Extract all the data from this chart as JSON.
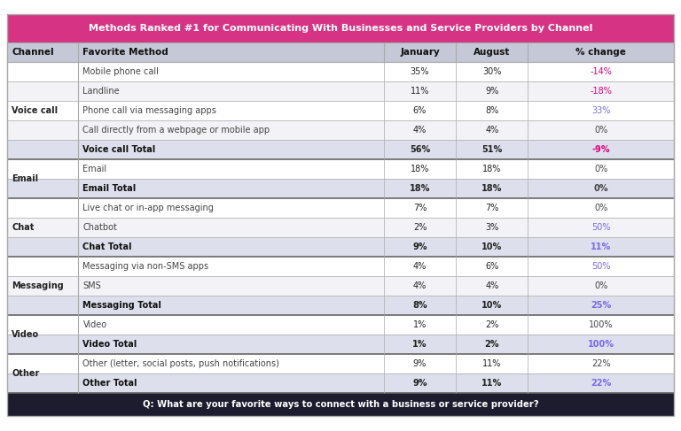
{
  "title": "Methods Ranked #1 for Communicating With Businesses and Service Providers by Channel",
  "footer": "Q: What are your favorite ways to connect with a business or service provider?",
  "col_headers": [
    "Channel",
    "Favorite Method",
    "January",
    "August",
    "% change"
  ],
  "rows": [
    {
      "channel": "Voice call",
      "method": "Mobile phone call",
      "jan": "35%",
      "aug": "30%",
      "pct": "-14%",
      "is_total": false,
      "pct_color": "#e0007a",
      "row_bg": "#ffffff"
    },
    {
      "channel": "",
      "method": "Landline",
      "jan": "11%",
      "aug": "9%",
      "pct": "-18%",
      "is_total": false,
      "pct_color": "#e0007a",
      "row_bg": "#f2f2f7"
    },
    {
      "channel": "",
      "method": "Phone call via messaging apps",
      "jan": "6%",
      "aug": "8%",
      "pct": "33%",
      "is_total": false,
      "pct_color": "#7b68ee",
      "row_bg": "#ffffff"
    },
    {
      "channel": "",
      "method": "Call directly from a webpage or mobile app",
      "jan": "4%",
      "aug": "4%",
      "pct": "0%",
      "is_total": false,
      "pct_color": "#444444",
      "row_bg": "#f2f2f7"
    },
    {
      "channel": "",
      "method": "Voice call Total",
      "jan": "56%",
      "aug": "51%",
      "pct": "-9%",
      "is_total": true,
      "pct_color": "#e0007a",
      "row_bg": "#dde0ec"
    },
    {
      "channel": "Email",
      "method": "Email",
      "jan": "18%",
      "aug": "18%",
      "pct": "0%",
      "is_total": false,
      "pct_color": "#444444",
      "row_bg": "#ffffff"
    },
    {
      "channel": "",
      "method": "Email Total",
      "jan": "18%",
      "aug": "18%",
      "pct": "0%",
      "is_total": true,
      "pct_color": "#444444",
      "row_bg": "#dde0ec"
    },
    {
      "channel": "Chat",
      "method": "Live chat or in-app messaging",
      "jan": "7%",
      "aug": "7%",
      "pct": "0%",
      "is_total": false,
      "pct_color": "#444444",
      "row_bg": "#ffffff"
    },
    {
      "channel": "",
      "method": "Chatbot",
      "jan": "2%",
      "aug": "3%",
      "pct": "50%",
      "is_total": false,
      "pct_color": "#7b68ee",
      "row_bg": "#f2f2f7"
    },
    {
      "channel": "",
      "method": "Chat Total",
      "jan": "9%",
      "aug": "10%",
      "pct": "11%",
      "is_total": true,
      "pct_color": "#7b68ee",
      "row_bg": "#dde0ec"
    },
    {
      "channel": "Messaging",
      "method": "Messaging via non-SMS apps",
      "jan": "4%",
      "aug": "6%",
      "pct": "50%",
      "is_total": false,
      "pct_color": "#7b68ee",
      "row_bg": "#ffffff"
    },
    {
      "channel": "",
      "method": "SMS",
      "jan": "4%",
      "aug": "4%",
      "pct": "0%",
      "is_total": false,
      "pct_color": "#444444",
      "row_bg": "#f2f2f7"
    },
    {
      "channel": "",
      "method": "Messaging Total",
      "jan": "8%",
      "aug": "10%",
      "pct": "25%",
      "is_total": true,
      "pct_color": "#7b68ee",
      "row_bg": "#dde0ec"
    },
    {
      "channel": "Video",
      "method": "Video",
      "jan": "1%",
      "aug": "2%",
      "pct": "100%",
      "is_total": false,
      "pct_color": "#444444",
      "row_bg": "#ffffff"
    },
    {
      "channel": "",
      "method": "Video Total",
      "jan": "1%",
      "aug": "2%",
      "pct": "100%",
      "is_total": true,
      "pct_color": "#7b68ee",
      "row_bg": "#dde0ec"
    },
    {
      "channel": "Other",
      "method": "Other (letter, social posts, push notifications)",
      "jan": "9%",
      "aug": "11%",
      "pct": "22%",
      "is_total": false,
      "pct_color": "#444444",
      "row_bg": "#ffffff"
    },
    {
      "channel": "",
      "method": "Other Total",
      "jan": "9%",
      "aug": "11%",
      "pct": "22%",
      "is_total": true,
      "pct_color": "#7b68ee",
      "row_bg": "#dde0ec"
    }
  ],
  "title_bg": "#d63384",
  "title_color": "#ffffff",
  "header_bg": "#c5c8d6",
  "header_color": "#111111",
  "footer_bg": "#1c1c2e",
  "footer_color": "#ffffff",
  "border_color": "#aaaaaa",
  "thick_border_color": "#666666",
  "channel_color": "#222222",
  "method_normal_color": "#444444",
  "method_total_color": "#111111",
  "value_color": "#222222",
  "title_fontsize": 8.0,
  "header_fontsize": 7.5,
  "cell_fontsize": 7.0,
  "footer_fontsize": 7.2
}
